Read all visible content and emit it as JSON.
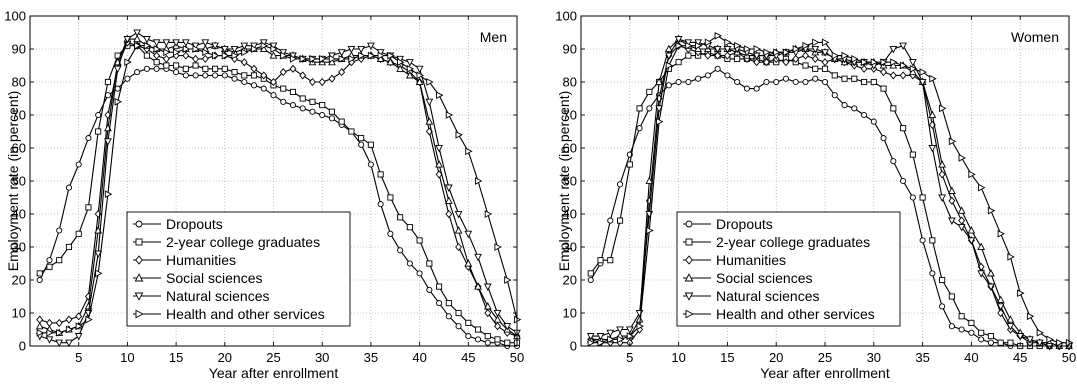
{
  "chart_data": [
    {
      "type": "line",
      "panel_label": "Men",
      "xlabel": "Year after enrollment",
      "ylabel": "Employment rate (in percent)",
      "xlim": [
        0,
        50
      ],
      "ylim": [
        0,
        100
      ],
      "xticks": [
        5,
        10,
        15,
        20,
        25,
        30,
        35,
        40,
        45,
        50
      ],
      "yticks": [
        0,
        10,
        20,
        30,
        40,
        50,
        60,
        70,
        80,
        90,
        100
      ],
      "grid": true,
      "legend": "bottom-left",
      "x": [
        1,
        2,
        3,
        4,
        5,
        6,
        7,
        8,
        9,
        10,
        11,
        12,
        13,
        14,
        15,
        16,
        17,
        18,
        19,
        20,
        21,
        22,
        23,
        24,
        25,
        26,
        27,
        28,
        29,
        30,
        31,
        32,
        33,
        34,
        35,
        36,
        37,
        38,
        39,
        40,
        41,
        42,
        43,
        44,
        45,
        46,
        47,
        48,
        49,
        50
      ],
      "series": [
        {
          "name": "Dropouts",
          "marker": "circle",
          "values": [
            20,
            26,
            35,
            48,
            55,
            63,
            70,
            76,
            78,
            81,
            83,
            84,
            84,
            84,
            83,
            82,
            82,
            82,
            82,
            82,
            81,
            80,
            79,
            78,
            76,
            74,
            73,
            72,
            71,
            70,
            69,
            67,
            65,
            61,
            55,
            43,
            34,
            29,
            25,
            22,
            17,
            13,
            9,
            6,
            3,
            2,
            1,
            1,
            0,
            0
          ]
        },
        {
          "name": "2-year college graduates",
          "marker": "square",
          "values": [
            22,
            24,
            26,
            30,
            34,
            42,
            65,
            80,
            88,
            91,
            91,
            88,
            86,
            85,
            85,
            84,
            85,
            84,
            84,
            84,
            83,
            82,
            82,
            81,
            79,
            78,
            77,
            75,
            74,
            73,
            71,
            68,
            65,
            63,
            61,
            52,
            45,
            39,
            36,
            32,
            25,
            18,
            13,
            10,
            7,
            5,
            3,
            2,
            1,
            1
          ]
        },
        {
          "name": "Humanities",
          "marker": "diamond",
          "values": [
            8,
            7,
            7,
            8,
            9,
            15,
            40,
            70,
            85,
            92,
            91,
            90,
            88,
            87,
            88,
            88,
            87,
            87,
            88,
            88,
            87,
            86,
            84,
            82,
            80,
            83,
            84,
            82,
            80,
            80,
            81,
            83,
            86,
            87,
            88,
            87,
            86,
            85,
            83,
            80,
            65,
            52,
            40,
            30,
            24,
            18,
            10,
            6,
            4,
            3
          ]
        },
        {
          "name": "Social sciences",
          "marker": "triangle-up",
          "values": [
            6,
            5,
            4,
            5,
            6,
            12,
            35,
            66,
            86,
            93,
            93,
            91,
            90,
            90,
            91,
            90,
            90,
            90,
            91,
            90,
            89,
            90,
            90,
            90,
            88,
            88,
            88,
            87,
            86,
            86,
            86,
            87,
            88,
            88,
            88,
            87,
            86,
            84,
            82,
            80,
            68,
            55,
            44,
            35,
            25,
            18,
            12,
            8,
            5,
            3
          ]
        },
        {
          "name": "Natural sciences",
          "marker": "triangle-down",
          "values": [
            3,
            2,
            1,
            1,
            3,
            10,
            28,
            62,
            84,
            93,
            95,
            93,
            92,
            92,
            92,
            92,
            91,
            92,
            91,
            90,
            90,
            91,
            91,
            92,
            91,
            89,
            88,
            87,
            87,
            87,
            88,
            89,
            90,
            90,
            91,
            89,
            88,
            87,
            86,
            84,
            74,
            60,
            48,
            40,
            34,
            27,
            18,
            10,
            6,
            4
          ]
        },
        {
          "name": "Health and other services",
          "marker": "triangle-right",
          "values": [
            4,
            4,
            4,
            5,
            6,
            8,
            22,
            46,
            74,
            86,
            91,
            91,
            90,
            89,
            89,
            90,
            90,
            89,
            88,
            88,
            88,
            89,
            90,
            91,
            90,
            88,
            87,
            87,
            87,
            87,
            87,
            87,
            87,
            88,
            88,
            88,
            88,
            86,
            84,
            82,
            80,
            76,
            70,
            64,
            59,
            50,
            40,
            30,
            20,
            8
          ]
        }
      ],
      "legend_entries": [
        "Dropouts",
        "2-year college graduates",
        "Humanities",
        "Social sciences",
        "Natural sciences",
        "Health and other services"
      ]
    },
    {
      "type": "line",
      "panel_label": "Women",
      "xlabel": "Year after enrollment",
      "ylabel": "Employment rate (in percent)",
      "xlim": [
        0,
        50
      ],
      "ylim": [
        0,
        100
      ],
      "xticks": [
        5,
        10,
        15,
        20,
        25,
        30,
        35,
        40,
        45,
        50
      ],
      "yticks": [
        0,
        10,
        20,
        30,
        40,
        50,
        60,
        70,
        80,
        90,
        100
      ],
      "grid": true,
      "legend": "bottom-left",
      "x": [
        1,
        2,
        3,
        4,
        5,
        6,
        7,
        8,
        9,
        10,
        11,
        12,
        13,
        14,
        15,
        16,
        17,
        18,
        19,
        20,
        21,
        22,
        23,
        24,
        25,
        26,
        27,
        28,
        29,
        30,
        31,
        32,
        33,
        34,
        35,
        36,
        37,
        38,
        39,
        40,
        41,
        42,
        43,
        44,
        45,
        46,
        47,
        48,
        49,
        50
      ],
      "series": [
        {
          "name": "Dropouts",
          "marker": "circle",
          "values": [
            20,
            25,
            38,
            49,
            58,
            66,
            72,
            76,
            79,
            80,
            80,
            81,
            82,
            84,
            82,
            80,
            78,
            78,
            80,
            80,
            81,
            80,
            80,
            81,
            80,
            76,
            73,
            72,
            70,
            68,
            63,
            56,
            50,
            45,
            32,
            22,
            12,
            6,
            5,
            4,
            2,
            1,
            1,
            0,
            0,
            0,
            0,
            0,
            0,
            0
          ]
        },
        {
          "name": "2-year college graduates",
          "marker": "square",
          "values": [
            22,
            26,
            26,
            38,
            55,
            72,
            77,
            80,
            84,
            86,
            88,
            88,
            89,
            88,
            87,
            87,
            87,
            87,
            86,
            86,
            87,
            86,
            85,
            84,
            84,
            82,
            81,
            81,
            80,
            80,
            78,
            72,
            66,
            58,
            45,
            32,
            20,
            15,
            9,
            7,
            4,
            3,
            1,
            1,
            0,
            0,
            0,
            0,
            0,
            0
          ]
        },
        {
          "name": "Humanities",
          "marker": "diamond",
          "values": [
            2,
            1,
            1,
            1,
            1,
            5,
            44,
            75,
            88,
            91,
            90,
            89,
            88,
            88,
            88,
            89,
            87,
            86,
            86,
            87,
            86,
            87,
            88,
            87,
            86,
            87,
            86,
            85,
            84,
            84,
            83,
            82,
            82,
            82,
            80,
            67,
            52,
            44,
            38,
            32,
            24,
            18,
            10,
            5,
            3,
            1,
            1,
            0,
            0,
            0
          ]
        },
        {
          "name": "Social sciences",
          "marker": "triangle-up",
          "values": [
            2,
            2,
            2,
            3,
            3,
            8,
            50,
            80,
            90,
            93,
            91,
            90,
            90,
            90,
            90,
            89,
            88,
            88,
            88,
            89,
            89,
            90,
            90,
            89,
            89,
            87,
            86,
            86,
            86,
            86,
            85,
            85,
            85,
            83,
            80,
            70,
            55,
            47,
            41,
            35,
            30,
            22,
            14,
            8,
            4,
            2,
            1,
            1,
            0,
            0
          ]
        },
        {
          "name": "Natural sciences",
          "marker": "triangle-down",
          "values": [
            3,
            3,
            4,
            5,
            5,
            10,
            40,
            72,
            88,
            93,
            92,
            92,
            91,
            90,
            90,
            90,
            89,
            88,
            88,
            88,
            89,
            89,
            90,
            90,
            89,
            87,
            87,
            86,
            86,
            85,
            86,
            90,
            91,
            86,
            80,
            60,
            45,
            38,
            36,
            32,
            22,
            18,
            12,
            6,
            3,
            2,
            1,
            0,
            0,
            0
          ]
        },
        {
          "name": "Health and other services",
          "marker": "triangle-right",
          "values": [
            1,
            1,
            2,
            2,
            3,
            6,
            35,
            68,
            85,
            91,
            91,
            91,
            92,
            94,
            92,
            91,
            90,
            90,
            89,
            89,
            89,
            90,
            91,
            92,
            92,
            88,
            88,
            87,
            86,
            86,
            86,
            86,
            85,
            84,
            83,
            81,
            72,
            62,
            57,
            52,
            48,
            41,
            34,
            27,
            16,
            9,
            4,
            2,
            1,
            1
          ]
        }
      ],
      "legend_entries": [
        "Dropouts",
        "2-year college graduates",
        "Humanities",
        "Social sciences",
        "Natural sciences",
        "Health and other services"
      ]
    }
  ]
}
